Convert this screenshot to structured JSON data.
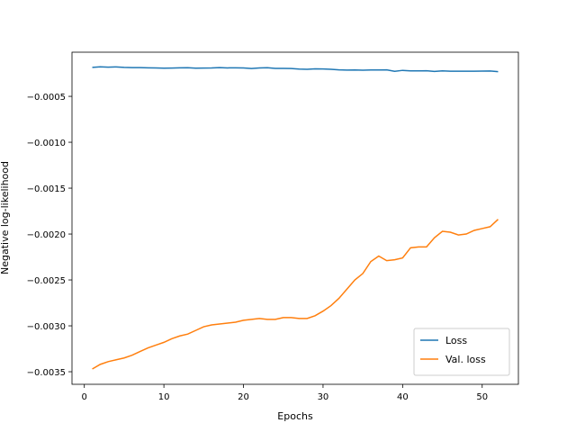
{
  "chart_data": {
    "type": "line",
    "x_label": "Epochs",
    "y_label": "Negative log-likelihood",
    "x": [
      1,
      2,
      3,
      4,
      5,
      6,
      7,
      8,
      9,
      10,
      11,
      12,
      13,
      14,
      15,
      16,
      17,
      18,
      19,
      20,
      21,
      22,
      23,
      24,
      25,
      26,
      27,
      28,
      29,
      30,
      31,
      32,
      33,
      34,
      35,
      36,
      37,
      38,
      39,
      40,
      41,
      42,
      43,
      44,
      45,
      46,
      47,
      48,
      49,
      50,
      51,
      52
    ],
    "series": [
      {
        "name": "Loss",
        "color": "#1f77b4",
        "values": [
          -0.000185,
          -0.000178,
          -0.000182,
          -0.000179,
          -0.000184,
          -0.000187,
          -0.000187,
          -0.000189,
          -0.00019,
          -0.000193,
          -0.000192,
          -0.000189,
          -0.000188,
          -0.000193,
          -0.000192,
          -0.000191,
          -0.000187,
          -0.00019,
          -0.000189,
          -0.000191,
          -0.000197,
          -0.000191,
          -0.000188,
          -0.000196,
          -0.000195,
          -0.000197,
          -0.000203,
          -0.000205,
          -0.0002,
          -0.000202,
          -0.000205,
          -0.000212,
          -0.000214,
          -0.000213,
          -0.000215,
          -0.000213,
          -0.000213,
          -0.000211,
          -0.000227,
          -0.000217,
          -0.000222,
          -0.000223,
          -0.000221,
          -0.000229,
          -0.000222,
          -0.000226,
          -0.000226,
          -0.000226,
          -0.000226,
          -0.000225,
          -0.000224,
          -0.000231
        ]
      },
      {
        "name": "Val. loss",
        "color": "#ff7f0e",
        "values": [
          -0.00347,
          -0.00342,
          -0.00339,
          -0.00337,
          -0.00335,
          -0.00332,
          -0.00328,
          -0.00324,
          -0.00321,
          -0.00318,
          -0.00314,
          -0.00311,
          -0.00309,
          -0.00305,
          -0.00301,
          -0.00299,
          -0.00298,
          -0.00297,
          -0.00296,
          -0.00294,
          -0.00293,
          -0.00292,
          -0.00293,
          -0.00293,
          -0.00291,
          -0.00291,
          -0.00292,
          -0.00292,
          -0.00289,
          -0.00284,
          -0.00278,
          -0.0027,
          -0.0026,
          -0.0025,
          -0.00243,
          -0.0023,
          -0.00224,
          -0.00229,
          -0.00228,
          -0.00226,
          -0.00215,
          -0.00214,
          -0.00214,
          -0.00204,
          -0.00197,
          -0.00198,
          -0.00201,
          -0.002,
          -0.00196,
          -0.00194,
          -0.00192,
          -0.00184
        ]
      }
    ],
    "xlim": [
      -1.55,
      54.55
    ],
    "xticks": [
      0,
      10,
      20,
      30,
      40,
      50
    ],
    "ylim": [
      -0.003637,
      -1.9e-05
    ],
    "yticks": [
      {
        "value": -0.0005,
        "label": "−0.0005"
      },
      {
        "value": -0.001,
        "label": "−0.0010"
      },
      {
        "value": -0.0015,
        "label": "−0.0015"
      },
      {
        "value": -0.002,
        "label": "−0.0020"
      },
      {
        "value": -0.0025,
        "label": "−0.0025"
      },
      {
        "value": -0.003,
        "label": "−0.0030"
      },
      {
        "value": -0.0035,
        "label": "−0.0035"
      }
    ],
    "legend": "lower right"
  }
}
